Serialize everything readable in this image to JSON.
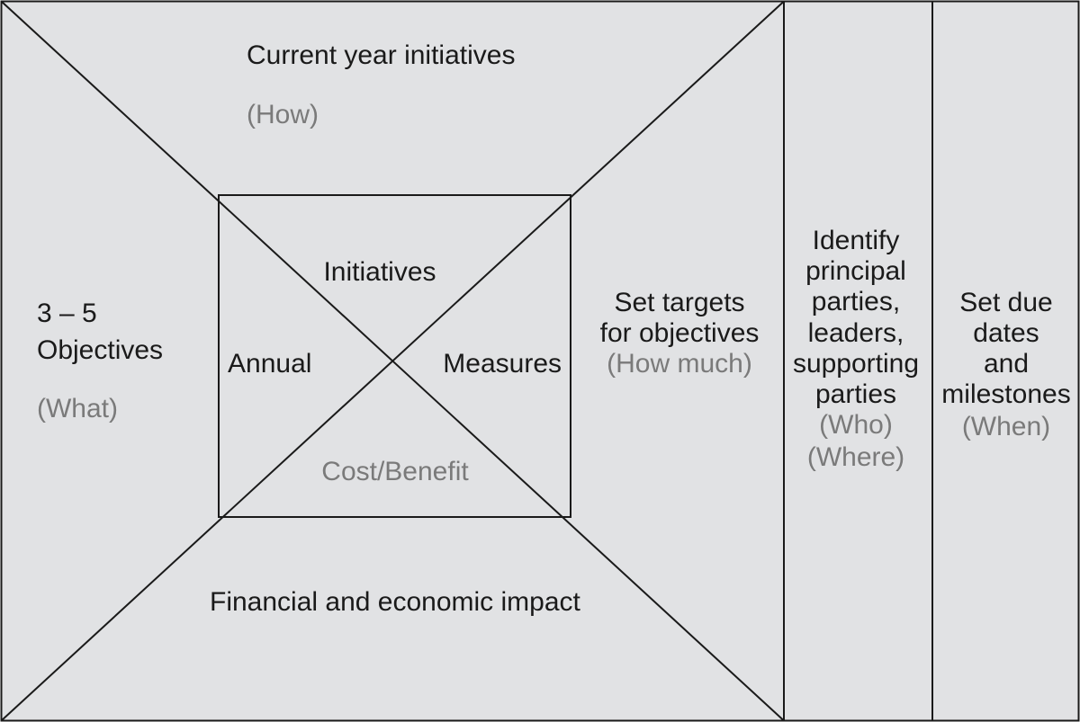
{
  "colors": {
    "background": "#e1e2e4",
    "line": "#1a1a1a",
    "text": "#1a1a1a",
    "muted_text": "#7a7a7a"
  },
  "top_section": {
    "title": "Current year initiatives",
    "subtitle": "(How)"
  },
  "left_section": {
    "line1": "3 – 5",
    "line2": "Objectives",
    "subtitle": "(What)"
  },
  "bottom_section": {
    "title": "Financial and economic impact"
  },
  "right_section": {
    "line1": "Set targets",
    "line2": "for objectives",
    "subtitle": "(How much)"
  },
  "inner_box": {
    "top": "Initiatives",
    "left": "Annual",
    "right": "Measures",
    "bottom": "Cost/Benefit"
  },
  "who_column": {
    "lines": [
      "Identify",
      "principal",
      "parties,",
      "leaders,",
      "supporting",
      "parties"
    ],
    "sub1": "(Who)",
    "sub2": "(Where)"
  },
  "when_column": {
    "lines": [
      "Set due",
      "dates",
      "and",
      "milestones"
    ],
    "sub1": "(When)"
  }
}
